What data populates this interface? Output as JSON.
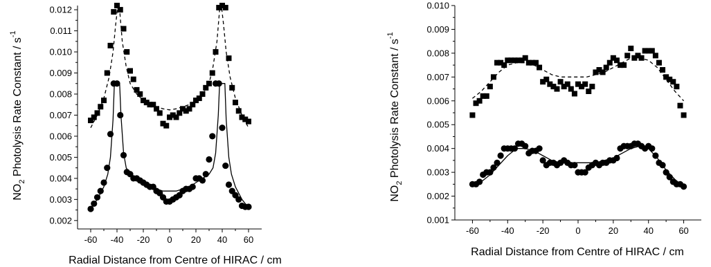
{
  "chart_data": [
    {
      "type": "scatter",
      "title": "",
      "xlabel": "Radial Distance from Centre of HIRAC / cm",
      "ylabel": {
        "pre": "NO",
        "sub": "2",
        "post": " Photolysis Rate Constant / s",
        "sup": "-1"
      },
      "xlim": [
        -70,
        70
      ],
      "ylim": [
        0.0016,
        0.0122
      ],
      "xticks": [
        "-60",
        "-40",
        "-20",
        "0",
        "20",
        "40",
        "60"
      ],
      "xtick_values": [
        -60,
        -40,
        -20,
        0,
        20,
        40,
        60
      ],
      "yticks": [
        "0.002",
        "0.003",
        "0.004",
        "0.005",
        "0.006",
        "0.007",
        "0.008",
        "0.009",
        "0.010",
        "0.011",
        "0.012"
      ],
      "ytick_values": [
        0.002,
        0.003,
        0.004,
        0.005,
        0.006,
        0.007,
        0.008,
        0.009,
        0.01,
        0.011,
        0.012
      ],
      "series": [
        {
          "marker": "square",
          "x": [
            -60,
            -57.5,
            -55,
            -52.5,
            -50,
            -47.5,
            -45,
            -42.5,
            -40,
            -37.5,
            -35,
            -32.5,
            -30,
            -27.5,
            -25,
            -22.5,
            -20,
            -17.5,
            -15,
            -12.5,
            -10,
            -7.5,
            -5,
            -2.5,
            0,
            2.5,
            5,
            7.5,
            10,
            12.5,
            15,
            17.5,
            20,
            22.5,
            25,
            27.5,
            30,
            32.5,
            35,
            37.5,
            40,
            42.5,
            45,
            47.5,
            50,
            52.5,
            55,
            57.5,
            60
          ],
          "y": [
            0.00675,
            0.0069,
            0.0071,
            0.0074,
            0.0077,
            0.009,
            0.0103,
            0.0119,
            0.0122,
            0.012,
            0.0111,
            0.01,
            0.0091,
            0.0087,
            0.0082,
            0.008,
            0.0077,
            0.0076,
            0.0075,
            0.0075,
            0.0073,
            0.0071,
            0.0066,
            0.0065,
            0.0069,
            0.007,
            0.0069,
            0.0071,
            0.0073,
            0.0072,
            0.0073,
            0.0075,
            0.0077,
            0.0078,
            0.008,
            0.0083,
            0.0085,
            0.009,
            0.01,
            0.0121,
            0.0122,
            0.0121,
            0.0097,
            0.0083,
            0.0076,
            0.0072,
            0.0069,
            0.0068,
            0.0067
          ]
        },
        {
          "marker": "circle",
          "x": [
            -60,
            -57.5,
            -55,
            -52.5,
            -50,
            -47.5,
            -45,
            -42.5,
            -40,
            -37.5,
            -35,
            -32.5,
            -30,
            -27.5,
            -25,
            -22.5,
            -20,
            -17.5,
            -15,
            -12.5,
            -10,
            -7.5,
            -5,
            -2.5,
            0,
            2.5,
            5,
            7.5,
            10,
            12.5,
            15,
            17.5,
            20,
            22.5,
            25,
            27.5,
            30,
            32.5,
            35,
            37.5,
            40,
            42.5,
            45,
            47.5,
            50,
            52.5,
            55,
            57.5,
            60
          ],
          "y": [
            0.00255,
            0.0028,
            0.0031,
            0.0034,
            0.0038,
            0.0045,
            0.0061,
            0.0085,
            0.0085,
            0.007,
            0.0051,
            0.0043,
            0.0042,
            0.004,
            0.004,
            0.0039,
            0.0038,
            0.0037,
            0.0036,
            0.0036,
            0.0034,
            0.0033,
            0.0031,
            0.0029,
            0.0029,
            0.003,
            0.0031,
            0.0032,
            0.0034,
            0.0035,
            0.0035,
            0.0036,
            0.004,
            0.004,
            0.0039,
            0.0042,
            0.0049,
            0.006,
            0.0085,
            0.0085,
            0.0064,
            0.0046,
            0.0037,
            0.0034,
            0.0032,
            0.003,
            0.0027,
            0.00265,
            0.00265
          ]
        }
      ],
      "fits": [
        {
          "style": "dashed",
          "x": [
            -60,
            -55,
            -50,
            -46,
            -43,
            -41,
            -39.5,
            -38,
            -36,
            -33,
            -30,
            -25,
            -20,
            -15,
            -10,
            -5,
            0,
            5,
            10,
            15,
            20,
            25,
            30,
            33,
            36,
            38,
            39.5,
            41,
            43,
            46,
            50,
            55,
            60
          ],
          "y": [
            0.0064,
            0.007,
            0.0078,
            0.0088,
            0.01,
            0.0113,
            0.0121,
            0.012,
            0.0105,
            0.0093,
            0.0085,
            0.008,
            0.0077,
            0.0075,
            0.0074,
            0.0073,
            0.00725,
            0.0073,
            0.0074,
            0.0075,
            0.0077,
            0.008,
            0.0085,
            0.0093,
            0.0105,
            0.012,
            0.0121,
            0.0113,
            0.01,
            0.0088,
            0.0078,
            0.007,
            0.0064
          ]
        },
        {
          "style": "solid",
          "x": [
            -60,
            -55,
            -50,
            -47,
            -45,
            -43,
            -42,
            -40,
            -38,
            -37,
            -35,
            -33,
            -30,
            -25,
            -20,
            -15,
            -10,
            -5,
            0,
            5,
            10,
            15,
            20,
            25,
            30,
            33,
            35,
            37,
            38,
            40,
            42,
            43,
            45,
            47,
            50,
            55,
            60
          ],
          "y": [
            0.0026,
            0.003,
            0.0036,
            0.0042,
            0.005,
            0.0068,
            0.0085,
            0.0085,
            0.0085,
            0.007,
            0.0052,
            0.0045,
            0.0042,
            0.004,
            0.0038,
            0.0036,
            0.0035,
            0.0034,
            0.0034,
            0.0034,
            0.0035,
            0.0036,
            0.0038,
            0.004,
            0.0042,
            0.0045,
            0.0052,
            0.007,
            0.0085,
            0.0085,
            0.0085,
            0.0068,
            0.005,
            0.0042,
            0.0036,
            0.003,
            0.0026
          ]
        }
      ]
    },
    {
      "type": "scatter",
      "title": "",
      "xlabel": "Radial Distance from Centre of HIRAC / cm",
      "ylabel": {
        "pre": "NO",
        "sub": "2",
        "post": " Photolysis Rate Constant / s",
        "sup": "-1"
      },
      "xlim": [
        -70,
        70
      ],
      "ylim": [
        0.001,
        0.01
      ],
      "xticks": [
        "-60",
        "-40",
        "-20",
        "0",
        "20",
        "40",
        "60"
      ],
      "xtick_values": [
        -60,
        -40,
        -20,
        0,
        20,
        40,
        60
      ],
      "yticks": [
        "0.001",
        "0.002",
        "0.003",
        "0.004",
        "0.005",
        "0.006",
        "0.007",
        "0.008",
        "0.009",
        "0.010"
      ],
      "ytick_values": [
        0.001,
        0.002,
        0.003,
        0.004,
        0.005,
        0.006,
        0.007,
        0.008,
        0.009,
        0.01
      ],
      "series": [
        {
          "marker": "square",
          "x": [
            -60,
            -58,
            -56,
            -54,
            -52,
            -50,
            -48,
            -46,
            -44,
            -42,
            -40,
            -38,
            -36,
            -34,
            -32,
            -30,
            -28,
            -26,
            -24,
            -22,
            -20,
            -18,
            -16,
            -14,
            -12,
            -10,
            -8,
            -6,
            -4,
            -2,
            0,
            2,
            4,
            6,
            8,
            10,
            12,
            14,
            16,
            18,
            20,
            22,
            24,
            26,
            28,
            30,
            32,
            34,
            36,
            38,
            40,
            42,
            44,
            46,
            48,
            50,
            52,
            54,
            56,
            58,
            60
          ],
          "y": [
            0.0054,
            0.0059,
            0.006,
            0.0062,
            0.0062,
            0.0066,
            0.007,
            0.0076,
            0.0076,
            0.0075,
            0.0077,
            0.0077,
            0.0077,
            0.0077,
            0.0077,
            0.0078,
            0.0076,
            0.0076,
            0.0076,
            0.0074,
            0.0068,
            0.0069,
            0.0067,
            0.0066,
            0.0065,
            0.0068,
            0.0066,
            0.0067,
            0.0065,
            0.0063,
            0.0067,
            0.0066,
            0.0067,
            0.0064,
            0.0066,
            0.0072,
            0.0073,
            0.0072,
            0.0074,
            0.0076,
            0.0078,
            0.0077,
            0.0075,
            0.0075,
            0.0079,
            0.0082,
            0.0078,
            0.0079,
            0.0078,
            0.0081,
            0.0081,
            0.0081,
            0.0079,
            0.0076,
            0.0073,
            0.007,
            0.0069,
            0.0068,
            0.0066,
            0.0058,
            0.0054
          ]
        },
        {
          "marker": "circle",
          "x": [
            -60,
            -58,
            -56,
            -54,
            -52,
            -50,
            -48,
            -46,
            -44,
            -42,
            -40,
            -38,
            -36,
            -34,
            -32,
            -30,
            -28,
            -26,
            -24,
            -22,
            -20,
            -18,
            -16,
            -14,
            -12,
            -10,
            -8,
            -6,
            -4,
            -2,
            0,
            2,
            4,
            6,
            8,
            10,
            12,
            14,
            16,
            18,
            20,
            22,
            24,
            26,
            28,
            30,
            32,
            34,
            36,
            38,
            40,
            42,
            44,
            46,
            48,
            50,
            52,
            54,
            56,
            58,
            60
          ],
          "y": [
            0.0025,
            0.0025,
            0.0026,
            0.0029,
            0.003,
            0.003,
            0.0032,
            0.0034,
            0.0037,
            0.004,
            0.004,
            0.004,
            0.004,
            0.0042,
            0.0042,
            0.0041,
            0.0038,
            0.0039,
            0.0039,
            0.004,
            0.0035,
            0.0033,
            0.0034,
            0.0034,
            0.0033,
            0.0034,
            0.0035,
            0.0034,
            0.0033,
            0.0033,
            0.003,
            0.003,
            0.003,
            0.0032,
            0.0033,
            0.0034,
            0.0033,
            0.0034,
            0.0034,
            0.0035,
            0.0035,
            0.0036,
            0.004,
            0.0041,
            0.0041,
            0.0041,
            0.0042,
            0.0042,
            0.0041,
            0.004,
            0.0041,
            0.004,
            0.0037,
            0.0034,
            0.0033,
            0.003,
            0.0028,
            0.0026,
            0.0025,
            0.0025,
            0.0024
          ]
        }
      ],
      "fits": [
        {
          "style": "dashed",
          "x": [
            -60,
            -55,
            -50,
            -45,
            -40,
            -35,
            -30,
            -25,
            -20,
            -15,
            -10,
            -5,
            0,
            5,
            10,
            15,
            20,
            25,
            30,
            35,
            40,
            45,
            50,
            55,
            60
          ],
          "y": [
            0.0061,
            0.0064,
            0.0068,
            0.0072,
            0.0075,
            0.0076,
            0.0076,
            0.0075,
            0.0073,
            0.0071,
            0.007,
            0.007,
            0.007,
            0.007,
            0.0071,
            0.0072,
            0.0074,
            0.0076,
            0.0078,
            0.0078,
            0.0077,
            0.0074,
            0.0069,
            0.0064,
            0.006
          ]
        },
        {
          "style": "solid",
          "x": [
            -60,
            -55,
            -50,
            -45,
            -40,
            -35,
            -30,
            -25,
            -20,
            -15,
            -10,
            -5,
            0,
            5,
            10,
            15,
            20,
            25,
            30,
            35,
            40,
            45,
            50,
            55,
            60
          ],
          "y": [
            0.0024,
            0.0026,
            0.0029,
            0.0033,
            0.0037,
            0.004,
            0.004,
            0.0039,
            0.0037,
            0.0035,
            0.0034,
            0.0034,
            0.0034,
            0.0034,
            0.0034,
            0.0035,
            0.0036,
            0.0038,
            0.004,
            0.0041,
            0.004,
            0.0036,
            0.0031,
            0.0027,
            0.0024
          ]
        }
      ]
    }
  ]
}
